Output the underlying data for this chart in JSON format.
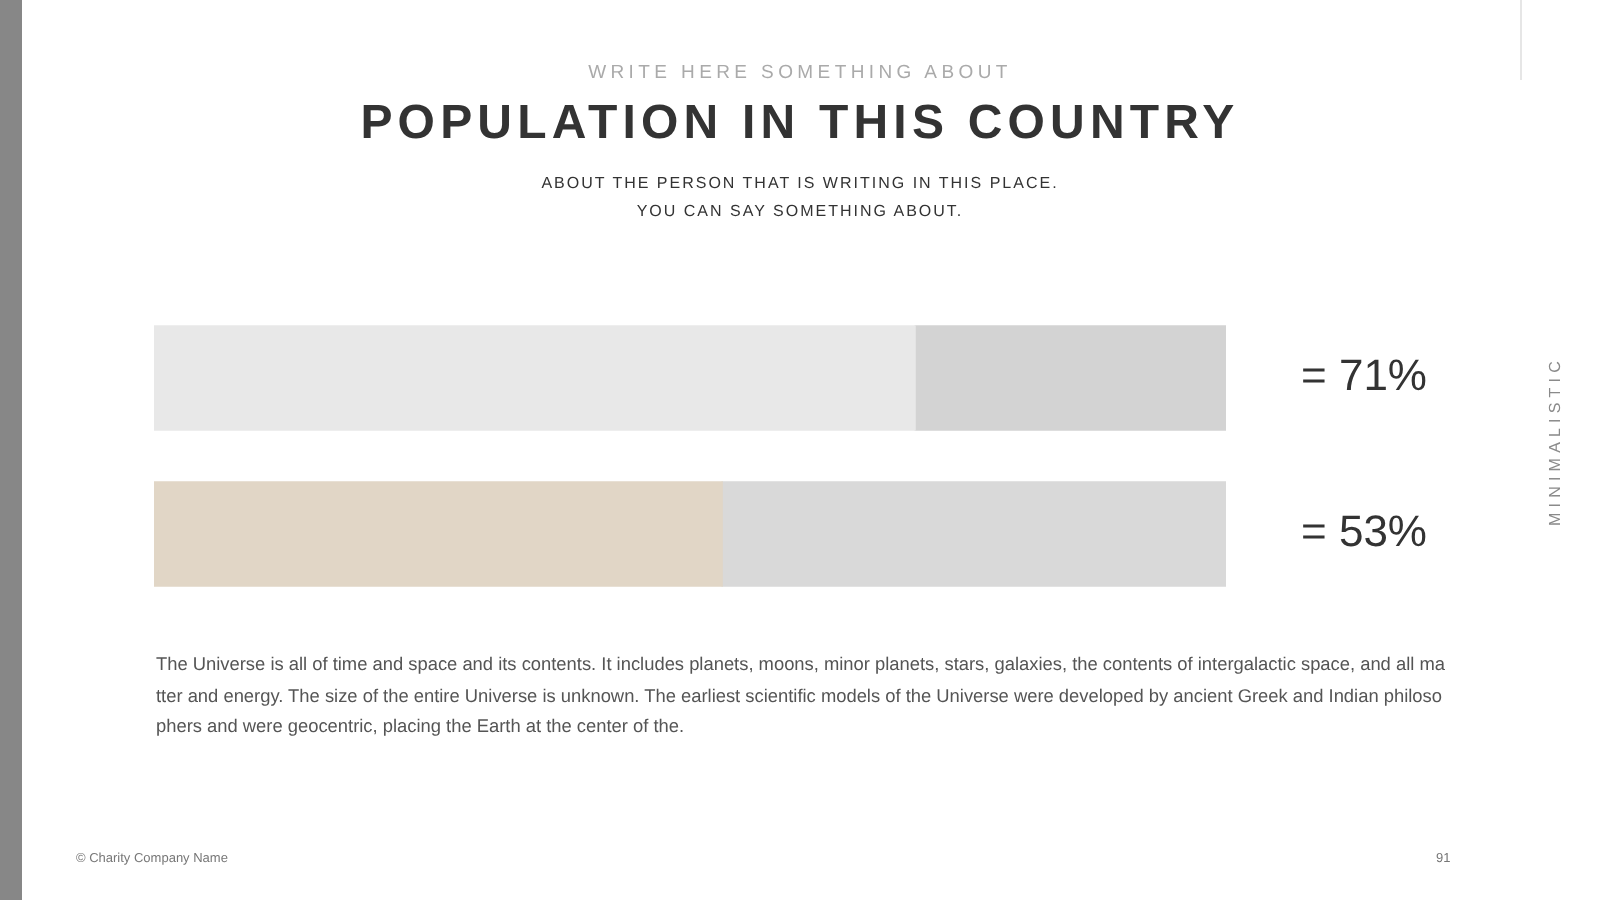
{
  "chart_data": {
    "type": "bar",
    "orientation": "horizontal",
    "stacked": true,
    "title": "POPULATION IN THIS COUNTRY",
    "subtitle": "ABOUT THE PERSON THAT IS WRITING IN THIS PLACE.\nYOU CAN SAY SOMETHING ABOUT.",
    "categories": [
      null,
      null
    ],
    "series": [
      {
        "values": [
          71,
          53
        ],
        "colors": [
          "#e8e8e8",
          "#e1d6c6"
        ],
        "value_labels": [
          "= 71%",
          "= 53%"
        ]
      },
      {
        "values": [
          29,
          47
        ],
        "colors": [
          "#d3d3d3",
          "#d9d9d9"
        ]
      }
    ],
    "xlim": [
      0,
      100
    ],
    "tick_labels": false,
    "annotations": [
      "WRITE HERE SOMETHING ABOUT",
      "The Universe is all of time and space and its contents. It includes planets, moons, minor planets, stars, galaxies, the contents of intergalactic space, and all matter and energy. The size of the entire Universe is unknown. The earliest scientific models of the Universe were developed by ancient Greek and Indian philosophers and were geocentric, placing the Earth at the center of the.",
      "© Charity Company Name",
      "91",
      "MINIMALISTIC"
    ]
  }
}
